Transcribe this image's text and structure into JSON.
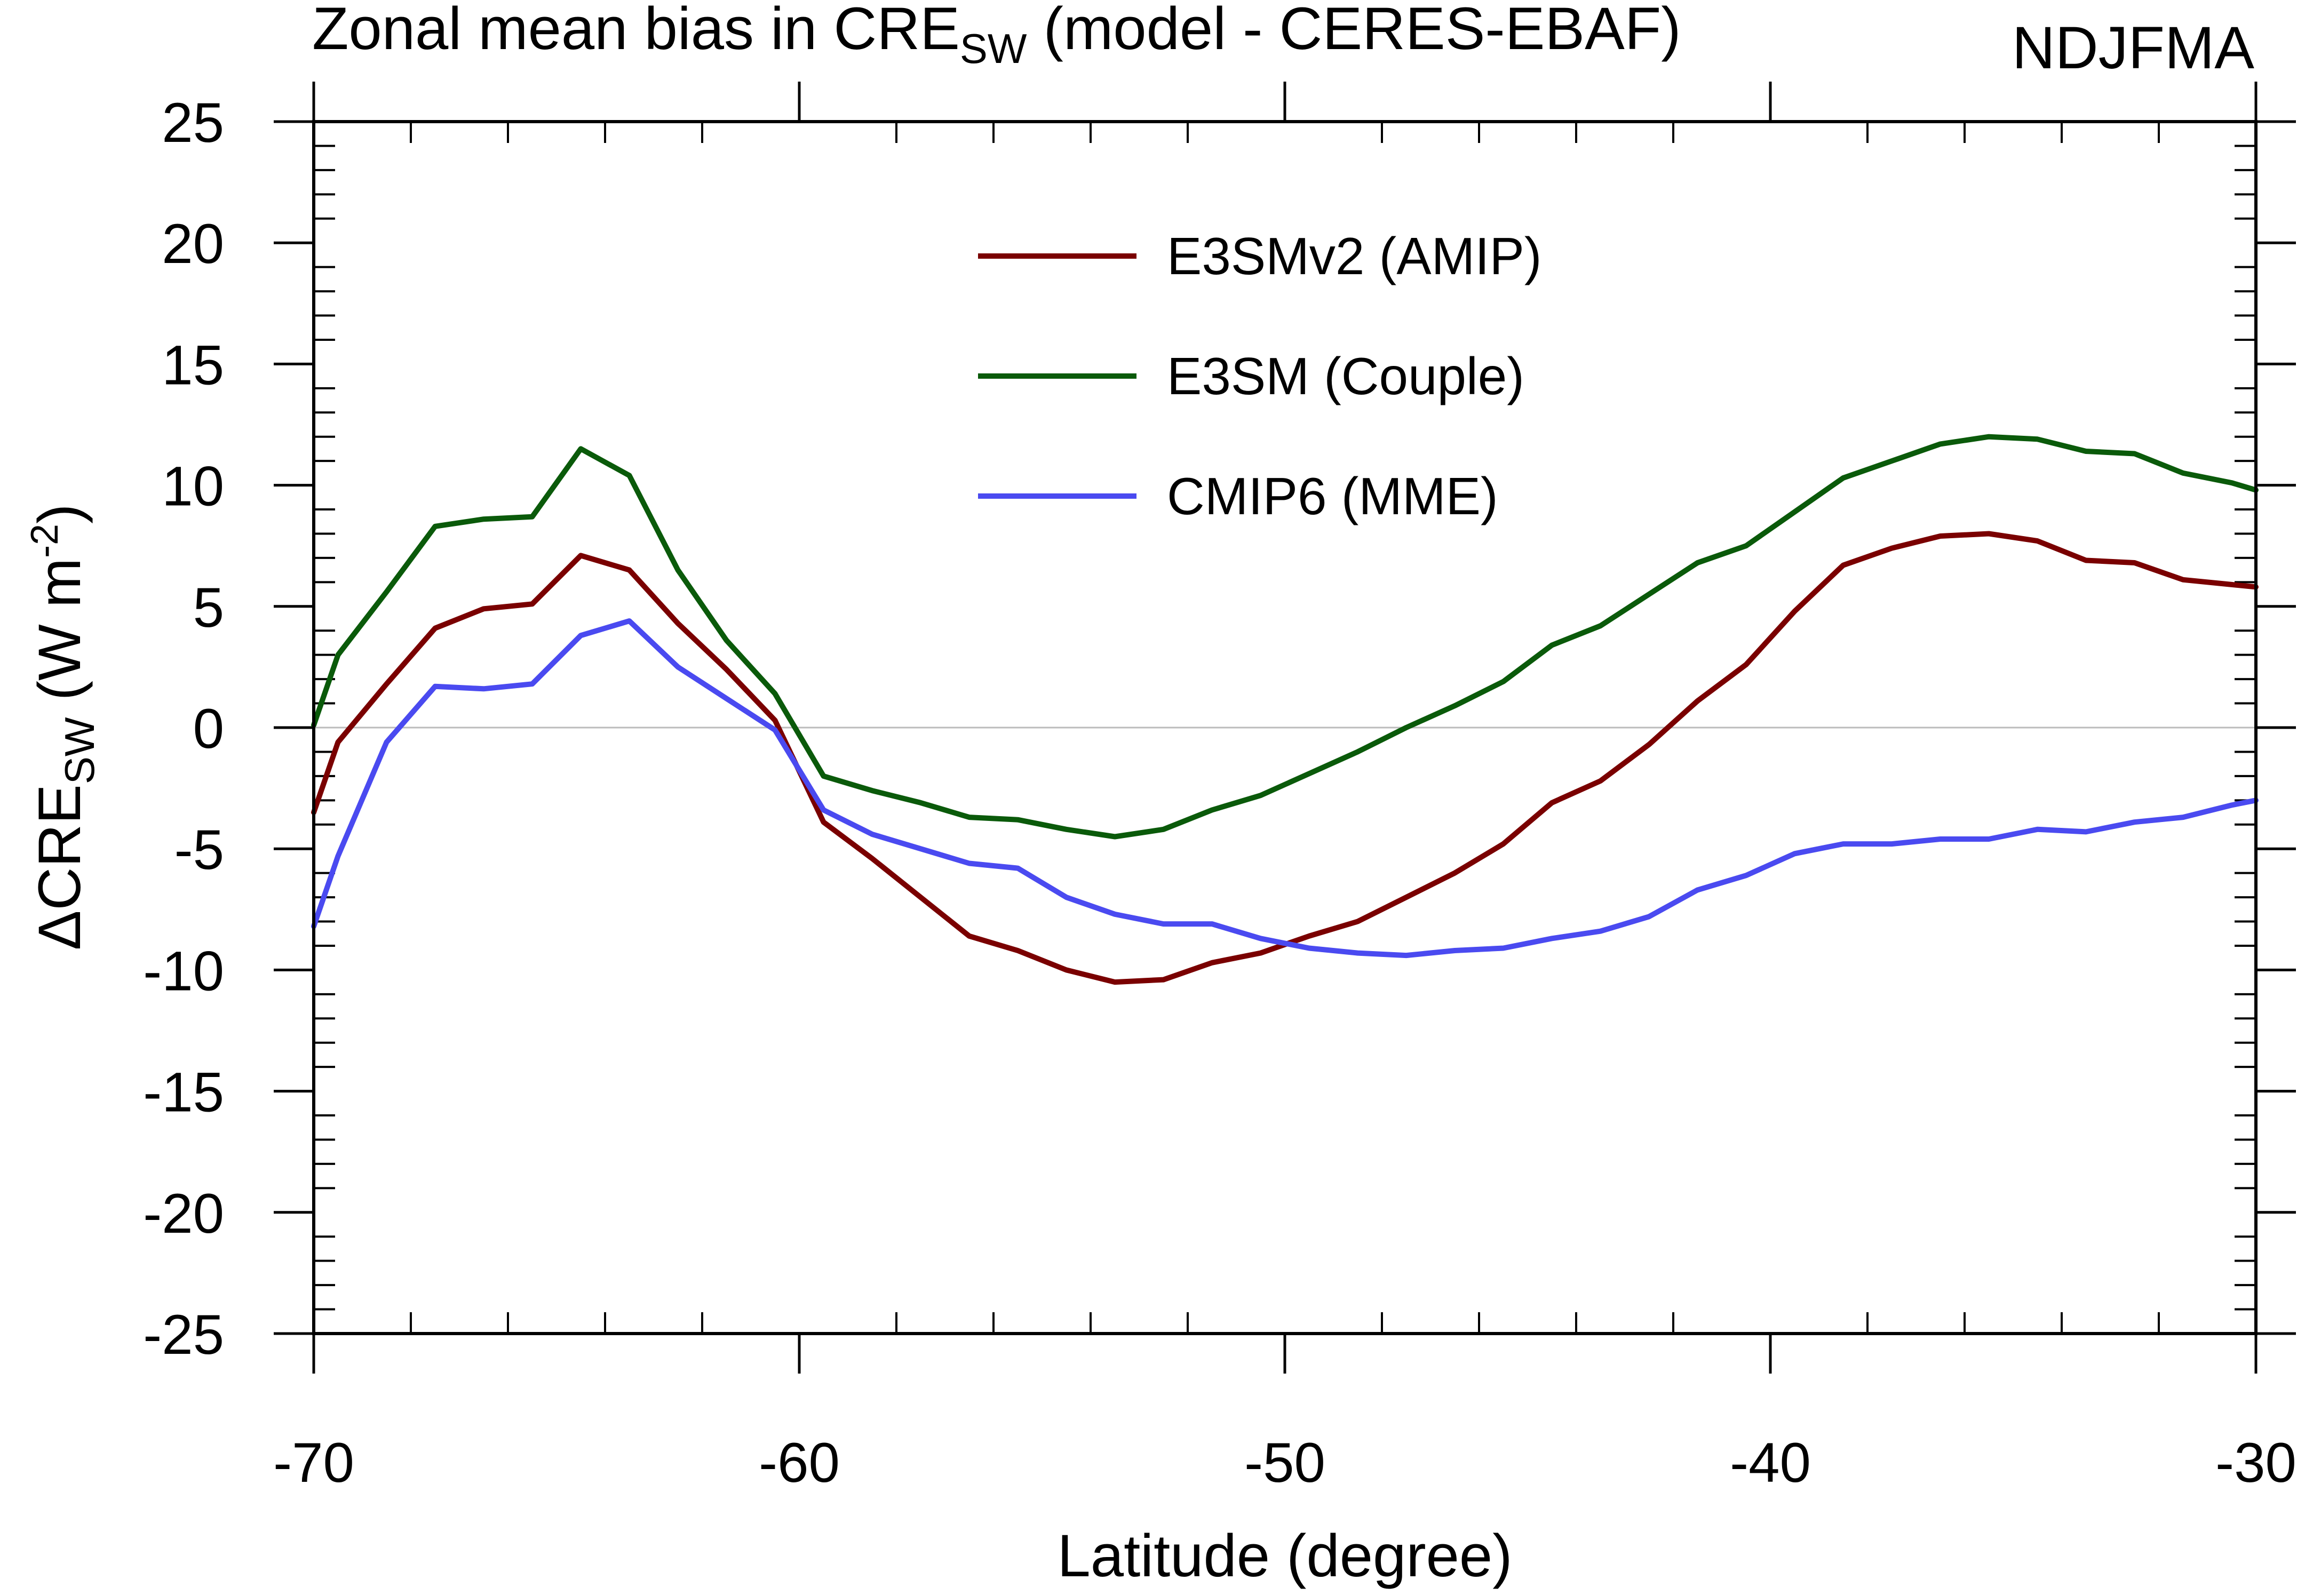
{
  "chart_data": {
    "type": "line",
    "title_prefix": "Zonal mean bias in CRE",
    "title_subscript": "SW",
    "title_suffix": " (model - CERES-EBAF)",
    "season": "NDJFMA",
    "xlabel": "Latitude (degree)",
    "ylabel_prefix": "ΔCRE",
    "ylabel_subscript": "SW",
    "ylabel_units_prefix": " (W m",
    "ylabel_units_superscript": "-2",
    "ylabel_units_suffix": ")",
    "xlim": [
      -70,
      -30
    ],
    "ylim": [
      -25,
      25
    ],
    "xticks": [
      -70,
      -60,
      -50,
      -40,
      -30
    ],
    "xtick_labels": [
      "-70",
      "-60",
      "-50",
      "-40",
      "-30"
    ],
    "yticks": [
      25,
      20,
      15,
      10,
      5,
      0,
      -5,
      -10,
      -15,
      -20,
      -25
    ],
    "ytick_labels": [
      "25",
      "20",
      "15",
      "10",
      "5",
      "0",
      "-5",
      "-10",
      "-15",
      "-20",
      "-25"
    ],
    "zero_line": true,
    "legend_position": "top-center",
    "x": [
      -70,
      -69.5,
      -68.5,
      -67.5,
      -66.5,
      -65.5,
      -64.5,
      -63.5,
      -62.5,
      -61.5,
      -60.5,
      -59.5,
      -58.5,
      -57.5,
      -56.5,
      -55.5,
      -54.5,
      -53.5,
      -52.5,
      -51.5,
      -50.5,
      -49.5,
      -48.5,
      -47.5,
      -46.5,
      -45.5,
      -44.5,
      -43.5,
      -42.5,
      -41.5,
      -40.5,
      -39.5,
      -38.5,
      -37.5,
      -36.5,
      -35.5,
      -34.5,
      -33.5,
      -32.5,
      -31.5,
      -30.5,
      -30
    ],
    "series": [
      {
        "name": "E3SMv2 (AMIP)",
        "color": "#7a0000",
        "values": [
          -3.5,
          -0.6,
          1.8,
          4.1,
          4.9,
          5.1,
          7.1,
          6.5,
          4.3,
          2.4,
          0.3,
          -3.9,
          -5.4,
          -7.0,
          -8.6,
          -9.2,
          -10.0,
          -10.5,
          -10.4,
          -9.7,
          -9.3,
          -8.6,
          -8.0,
          -7.0,
          -6.0,
          -4.8,
          -3.1,
          -2.2,
          -0.7,
          1.1,
          2.6,
          4.8,
          6.7,
          7.4,
          7.9,
          8.0,
          7.7,
          6.9,
          6.8,
          6.1,
          5.9,
          5.8
        ]
      },
      {
        "name": "E3SM (Couple)",
        "color": "#0a5a0a",
        "values": [
          0.1,
          3.0,
          5.6,
          8.3,
          8.6,
          8.7,
          11.5,
          10.4,
          6.5,
          3.6,
          1.4,
          -2.0,
          -2.6,
          -3.1,
          -3.7,
          -3.8,
          -4.2,
          -4.5,
          -4.2,
          -3.4,
          -2.8,
          -1.9,
          -1.0,
          0.0,
          0.9,
          1.9,
          3.4,
          4.2,
          5.5,
          6.8,
          7.5,
          8.9,
          10.3,
          11.0,
          11.7,
          12.0,
          11.9,
          11.4,
          11.3,
          10.5,
          10.1,
          9.8
        ]
      },
      {
        "name": "CMIP6 (MME)",
        "color": "#4a4af0",
        "values": [
          -8.2,
          -5.3,
          -0.6,
          1.7,
          1.6,
          1.8,
          3.8,
          4.4,
          2.5,
          1.2,
          -0.1,
          -3.4,
          -4.4,
          -5.0,
          -5.6,
          -5.8,
          -7.0,
          -7.7,
          -8.1,
          -8.1,
          -8.7,
          -9.1,
          -9.3,
          -9.4,
          -9.2,
          -9.1,
          -8.7,
          -8.4,
          -7.8,
          -6.7,
          -6.1,
          -5.2,
          -4.8,
          -4.8,
          -4.6,
          -4.6,
          -4.2,
          -4.3,
          -3.9,
          -3.7,
          -3.2,
          -3.0
        ]
      }
    ]
  }
}
